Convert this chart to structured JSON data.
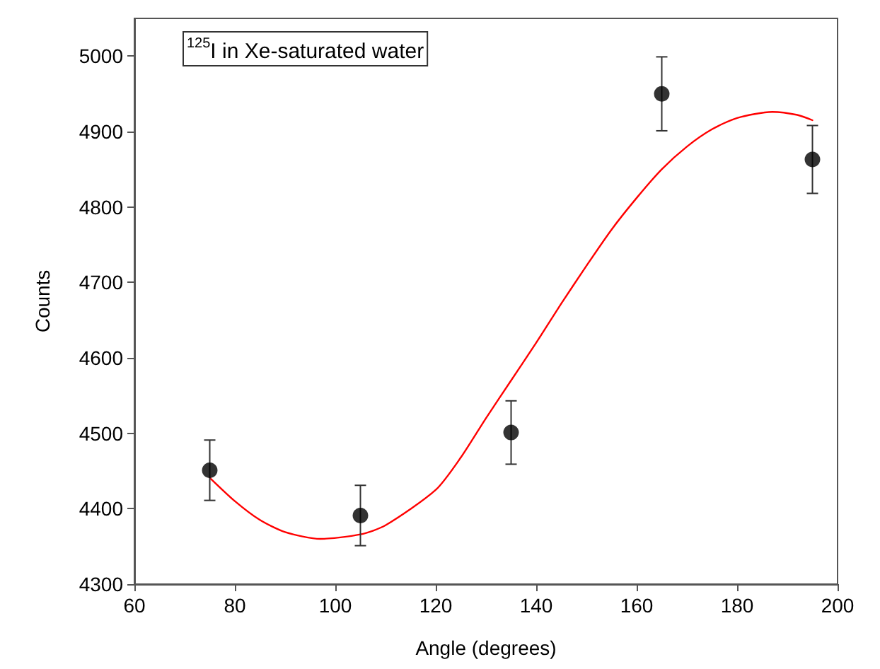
{
  "chart_data": {
    "type": "scatter",
    "xlabel": "Angle (degrees)",
    "ylabel": "Counts",
    "annotations": [
      "$^{125}$I in Xe-saturated water"
    ],
    "xlim": [
      60,
      200
    ],
    "xticks": [
      60,
      80,
      100,
      120,
      140,
      160,
      180,
      200
    ],
    "ylim": [
      4300,
      5050
    ],
    "yticks": [
      4300,
      4400,
      4500,
      4600,
      4700,
      4800,
      4900,
      5000
    ],
    "marker": "circle",
    "series": [
      {
        "color": "#000000",
        "x": [
          75,
          105,
          135,
          165,
          195
        ],
        "values": [
          4451,
          4391,
          4501,
          4950,
          4863
        ],
        "errors": [
          40,
          40,
          42,
          49,
          45
        ]
      },
      {
        "type": "line",
        "color": "#ff0000",
        "marker": "none",
        "line_style": "solid",
        "x": [
          75,
          80,
          85,
          90,
          97,
          105,
          110,
          120,
          125,
          130,
          135,
          140,
          145,
          150,
          155,
          160,
          165,
          170,
          175,
          180,
          187,
          192,
          195
        ],
        "values": [
          4441,
          4410,
          4385,
          4369,
          4360,
          4366,
          4378,
          4425,
          4468,
          4520,
          4570,
          4620,
          4672,
          4722,
          4770,
          4812,
          4850,
          4880,
          4903,
          4918,
          4926,
          4922,
          4915
        ]
      }
    ]
  }
}
